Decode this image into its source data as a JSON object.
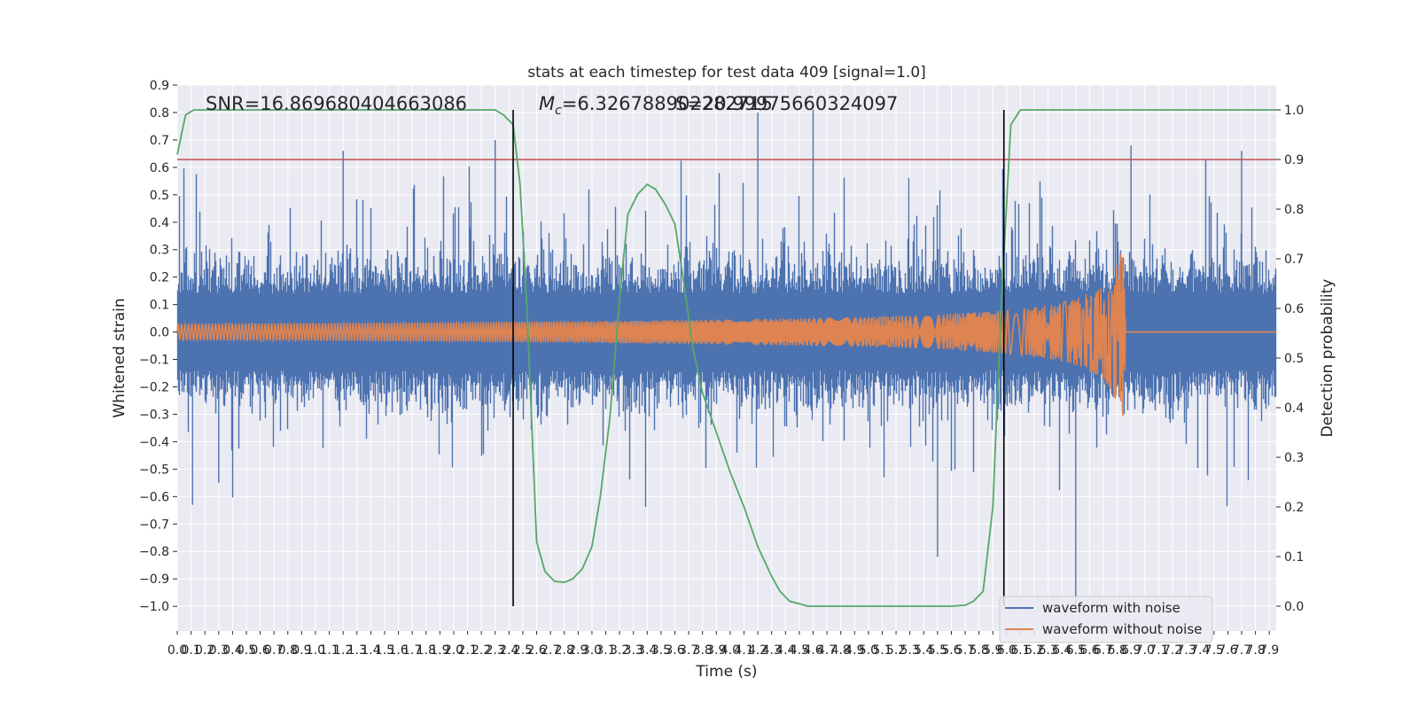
{
  "chart_data": {
    "type": "line",
    "title": "stats at each timestep for test data 409 [signal=1.0]",
    "xlabel": "Time (s)",
    "ylabel_left": "Whitened strain",
    "ylabel_right": "Detection probability",
    "xlim": [
      0.0,
      7.95
    ],
    "ylim_left": [
      -1.09,
      0.9
    ],
    "ylim_right": [
      -0.05,
      1.05
    ],
    "x_ticks": [
      "0.0",
      "0.1",
      "0.2",
      "0.3",
      "0.4",
      "0.5",
      "0.6",
      "0.7",
      "0.8",
      "0.9",
      "1.0",
      "1.1",
      "1.2",
      "1.3",
      "1.4",
      "1.5",
      "1.6",
      "1.7",
      "1.8",
      "1.9",
      "2.0",
      "2.1",
      "2.2",
      "2.3",
      "2.4",
      "2.5",
      "2.6",
      "2.7",
      "2.8",
      "2.9",
      "3.0",
      "3.1",
      "3.2",
      "3.3",
      "3.4",
      "3.5",
      "3.6",
      "3.7",
      "3.8",
      "3.9",
      "4.0",
      "4.1",
      "4.2",
      "4.3",
      "4.4",
      "4.5",
      "4.6",
      "4.7",
      "4.8",
      "4.9",
      "5.0",
      "5.1",
      "5.2",
      "5.3",
      "5.4",
      "5.5",
      "5.6",
      "5.7",
      "5.8",
      "5.9",
      "6.0",
      "6.1",
      "6.2",
      "6.3",
      "6.4",
      "6.5",
      "6.6",
      "6.7",
      "6.8",
      "6.9",
      "7.0",
      "7.1",
      "7.2",
      "7.3",
      "7.4",
      "7.5",
      "7.6",
      "7.7",
      "7.8",
      "7.9"
    ],
    "y_ticks_left": [
      "0.9",
      "0.8",
      "0.7",
      "0.6",
      "0.5",
      "0.4",
      "0.3",
      "0.2",
      "0.1",
      "0.0",
      "−0.1",
      "−0.2",
      "−0.3",
      "−0.4",
      "−0.5",
      "−0.6",
      "−0.7",
      "−0.8",
      "−0.9",
      "−1.0"
    ],
    "y_ticks_right": [
      "1.0",
      "0.9",
      "0.8",
      "0.7",
      "0.6",
      "0.5",
      "0.4",
      "0.3",
      "0.2",
      "0.1",
      "0.0"
    ],
    "annotations": {
      "snr": "SNR=16.869680404663086",
      "mc_symbol": "M",
      "mc_sub": "c",
      "mc_value": "=6.326788902282715",
      "overlap": "S=20.99975660324097"
    },
    "vertical_lines_x": [
      2.43,
      5.98
    ],
    "threshold_line": {
      "axis": "right",
      "value": 0.9,
      "color": "#c44e52"
    },
    "detection_probability": {
      "x": [
        0.0,
        0.06,
        0.12,
        0.2,
        0.4,
        0.8,
        1.2,
        1.6,
        2.0,
        2.2,
        2.3,
        2.36,
        2.43,
        2.48,
        2.53,
        2.6,
        2.66,
        2.73,
        2.8,
        2.86,
        2.93,
        3.0,
        3.06,
        3.13,
        3.2,
        3.26,
        3.33,
        3.4,
        3.43,
        3.46,
        3.53,
        3.6,
        3.66,
        3.73,
        3.8,
        3.9,
        4.0,
        4.1,
        4.2,
        4.3,
        4.36,
        4.43,
        4.5,
        4.56,
        4.63,
        4.7,
        5.0,
        5.4,
        5.6,
        5.7,
        5.76,
        5.83,
        5.9,
        5.96,
        6.03,
        6.1,
        6.2,
        6.5,
        7.0,
        7.5,
        7.95
      ],
      "y": [
        0.91,
        0.99,
        1.0,
        1.0,
        1.0,
        1.0,
        1.0,
        1.0,
        1.0,
        1.0,
        1.0,
        0.99,
        0.97,
        0.85,
        0.6,
        0.13,
        0.07,
        0.05,
        0.048,
        0.055,
        0.075,
        0.12,
        0.22,
        0.38,
        0.62,
        0.79,
        0.83,
        0.85,
        0.845,
        0.84,
        0.81,
        0.77,
        0.66,
        0.52,
        0.43,
        0.35,
        0.27,
        0.2,
        0.12,
        0.06,
        0.03,
        0.01,
        0.005,
        0.0,
        0.0,
        0.0,
        0.0,
        0.0,
        0.0,
        0.002,
        0.01,
        0.03,
        0.2,
        0.6,
        0.97,
        1.0,
        1.0,
        1.0,
        1.0,
        1.0,
        1.0
      ]
    },
    "noise_envelope": {
      "color": "#4c72b0",
      "typical_range": [
        -0.32,
        0.32
      ],
      "peak_range": [
        -1.01,
        0.81
      ]
    },
    "chirp_envelope": {
      "color": "#dd8452",
      "x": [
        0.0,
        1.0,
        2.0,
        3.0,
        4.0,
        5.0,
        5.5,
        5.9,
        6.2,
        6.5,
        6.7,
        6.8,
        6.85,
        6.86,
        7.95
      ],
      "amplitude": [
        0.03,
        0.032,
        0.036,
        0.04,
        0.046,
        0.055,
        0.063,
        0.075,
        0.09,
        0.12,
        0.17,
        0.26,
        0.32,
        0.0,
        0.0
      ]
    },
    "legend": {
      "position": "lower right",
      "entries": [
        {
          "label": "waveform with noise",
          "color": "#4c72b0"
        },
        {
          "label": "waveform without noise",
          "color": "#dd8452"
        }
      ]
    },
    "grid": true,
    "colors": {
      "background": "#eaeaf2",
      "grid": "#ffffff",
      "probability": "#55a868"
    }
  }
}
